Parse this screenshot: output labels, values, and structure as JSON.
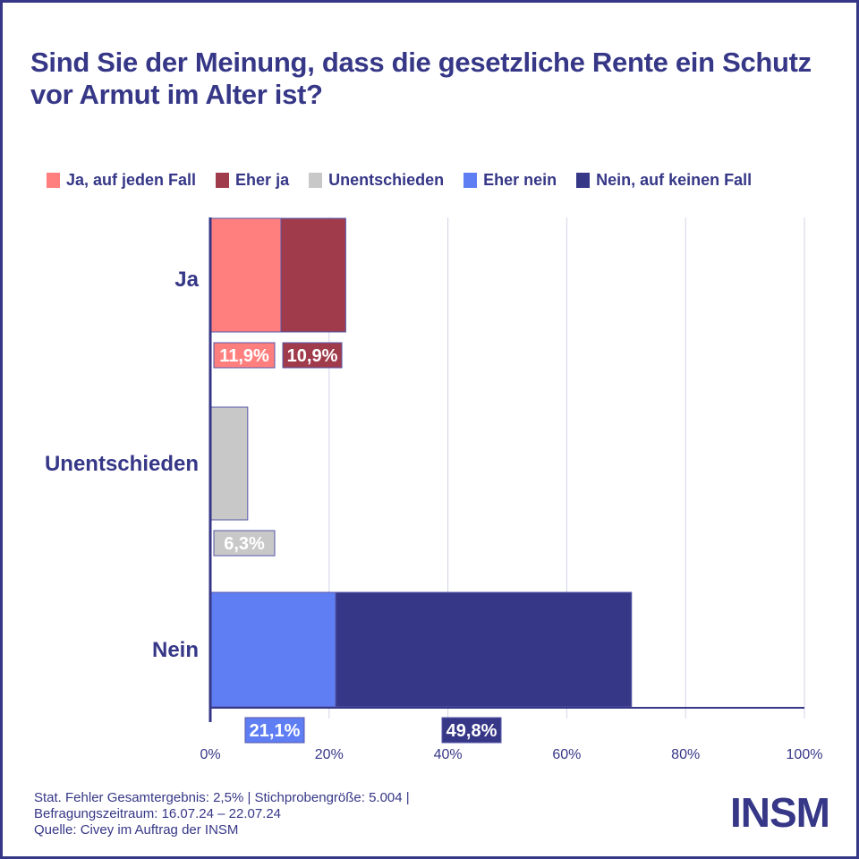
{
  "title": "Sind Sie der Meinung, dass die gesetzliche Rente ein Schutz vor Armut im Alter ist?",
  "legend": [
    {
      "label": "Ja, auf jeden Fall",
      "color": "#FF7F7E"
    },
    {
      "label": "Eher ja",
      "color": "#A03B4C"
    },
    {
      "label": "Unentschieden",
      "color": "#C8C8C8"
    },
    {
      "label": "Eher nein",
      "color": "#5F7EF3"
    },
    {
      "label": "Nein, auf keinen Fall",
      "color": "#363787"
    }
  ],
  "chart_data": {
    "type": "bar",
    "orientation": "horizontal",
    "stacked": true,
    "title": "Sind Sie der Meinung, dass die gesetzliche Rente ein Schutz vor Armut im Alter ist?",
    "xlabel": "",
    "ylabel": "",
    "xlim": [
      0,
      100
    ],
    "x_ticks": [
      "0%",
      "20%",
      "40%",
      "60%",
      "80%",
      "100%"
    ],
    "x_tick_values": [
      0,
      20,
      40,
      60,
      80,
      100
    ],
    "grid": true,
    "legend_position": "top",
    "categories": [
      "Ja",
      "Unentschieden",
      "Nein"
    ],
    "series": [
      {
        "name": "Ja, auf jeden Fall",
        "color": "#FF7F7E",
        "values": [
          11.9,
          null,
          null
        ],
        "labels": [
          "11,9%",
          null,
          null
        ]
      },
      {
        "name": "Eher ja",
        "color": "#A03B4C",
        "values": [
          10.9,
          null,
          null
        ],
        "labels": [
          "10,9%",
          null,
          null
        ]
      },
      {
        "name": "Unentschieden",
        "color": "#C8C8C8",
        "values": [
          null,
          6.3,
          null
        ],
        "labels": [
          null,
          "6,3%",
          null
        ]
      },
      {
        "name": "Eher nein",
        "color": "#5F7EF3",
        "values": [
          null,
          null,
          21.1
        ],
        "labels": [
          null,
          null,
          "21,1%"
        ]
      },
      {
        "name": "Nein, auf keinen Fall",
        "color": "#363787",
        "values": [
          null,
          null,
          49.8
        ],
        "labels": [
          null,
          null,
          "49,8%"
        ]
      }
    ]
  },
  "footer": {
    "line1": "Stat. Fehler Gesamtergebnis: 2,5% | Stichprobengröße: 5.004 |",
    "line2": "Befragungszeitraum: 16.07.24 – 22.07.24",
    "line3": "Quelle: Civey im Auftrag der INSM"
  },
  "logo": "INSM",
  "colors": {
    "brand": "#363787",
    "grid": "#D3D3EA"
  }
}
